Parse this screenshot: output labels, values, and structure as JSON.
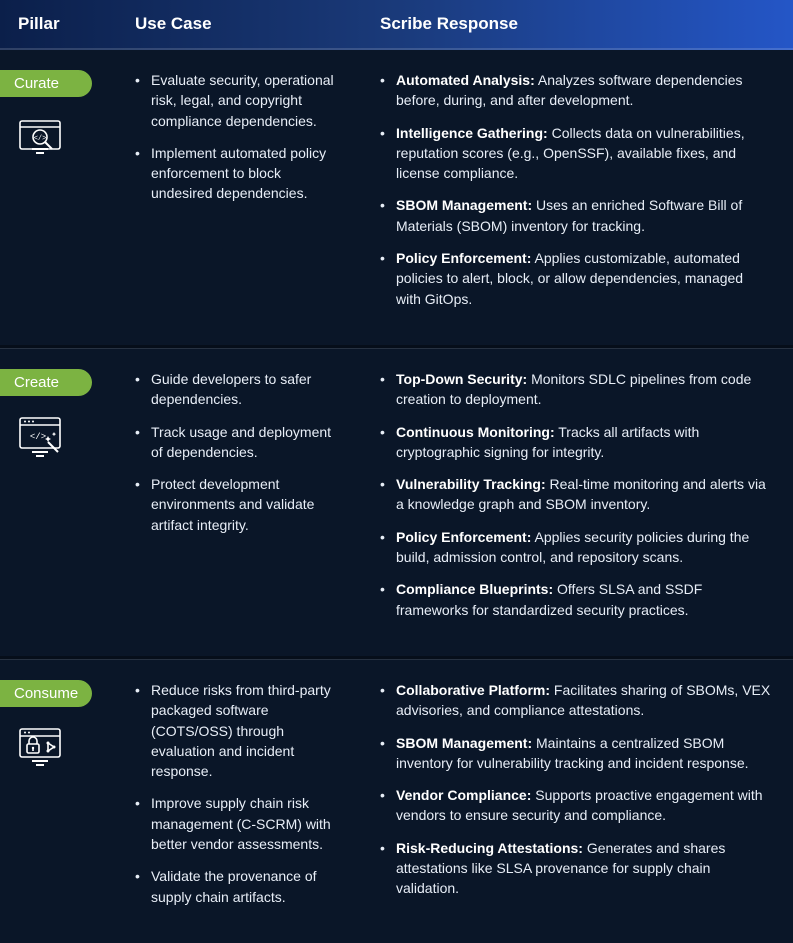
{
  "colors": {
    "header_gradient_start": "#0b1f4a",
    "header_gradient_mid": "#1a3a7a",
    "header_gradient_end": "#2456c7",
    "body_bg": "#0a1628",
    "badge_bg": "#7cb342",
    "text": "#e8eef7",
    "title_text": "#ffffff",
    "icon_stroke": "#ffffff"
  },
  "typography": {
    "header_fontsize": 17,
    "body_fontsize": 14,
    "badge_fontsize": 15
  },
  "header": {
    "pillar": "Pillar",
    "usecase": "Use Case",
    "response": "Scribe Response"
  },
  "rows": [
    {
      "badge": "Curate",
      "icon": "magnify-code-icon",
      "usecases": [
        "Evaluate security, operational risk, legal, and copyright compliance dependencies.",
        "Implement automated policy enforcement to block undesired dependencies."
      ],
      "responses": [
        {
          "title": "Automated Analysis:",
          "text": " Analyzes software dependencies before, during, and after development."
        },
        {
          "title": "Intelligence Gathering:",
          "text": " Collects data on vulnerabilities, reputation scores (e.g., OpenSSF), available fixes, and license compliance."
        },
        {
          "title": "SBOM Management:",
          "text": " Uses an enriched Software Bill of Materials (SBOM) inventory for tracking."
        },
        {
          "title": "Policy Enforcement:",
          "text": " Applies customizable, automated policies to alert, block, or allow dependencies, managed with GitOps."
        }
      ]
    },
    {
      "badge": "Create",
      "icon": "code-wand-icon",
      "usecases": [
        "Guide developers to safer dependencies.",
        "Track usage and deployment of dependencies.",
        "Protect development environments and validate artifact integrity."
      ],
      "responses": [
        {
          "title": "Top-Down Security:",
          "text": " Monitors SDLC pipelines from code creation to deployment."
        },
        {
          "title": "Continuous Monitoring:",
          "text": " Tracks all artifacts with cryptographic signing for integrity."
        },
        {
          "title": "Vulnerability Tracking:",
          "text": " Real-time monitoring and alerts via a knowledge graph and SBOM inventory."
        },
        {
          "title": "Policy Enforcement:",
          "text": " Applies security policies during the build, admission control, and repository scans."
        },
        {
          "title": "Compliance Blueprints:",
          "text": " Offers SLSA and SSDF frameworks for standardized security practices."
        }
      ]
    },
    {
      "badge": "Consume",
      "icon": "lock-monitor-icon",
      "usecases": [
        "Reduce risks from third-party packaged software (COTS/OSS) through evaluation and incident response.",
        "Improve supply chain risk management (C-SCRM) with better vendor assessments.",
        "Validate the provenance of supply chain artifacts."
      ],
      "responses": [
        {
          "title": "Collaborative Platform:",
          "text": " Facilitates sharing of SBOMs, VEX advisories, and compliance attestations."
        },
        {
          "title": "SBOM Management:",
          "text": " Maintains a centralized SBOM inventory for vulnerability tracking and incident response."
        },
        {
          "title": "Vendor Compliance:",
          "text": " Supports proactive engagement with vendors to ensure security and compliance."
        },
        {
          "title": "Risk-Reducing Attestations:",
          "text": " Generates and shares attestations like SLSA provenance for supply chain validation."
        }
      ]
    }
  ]
}
